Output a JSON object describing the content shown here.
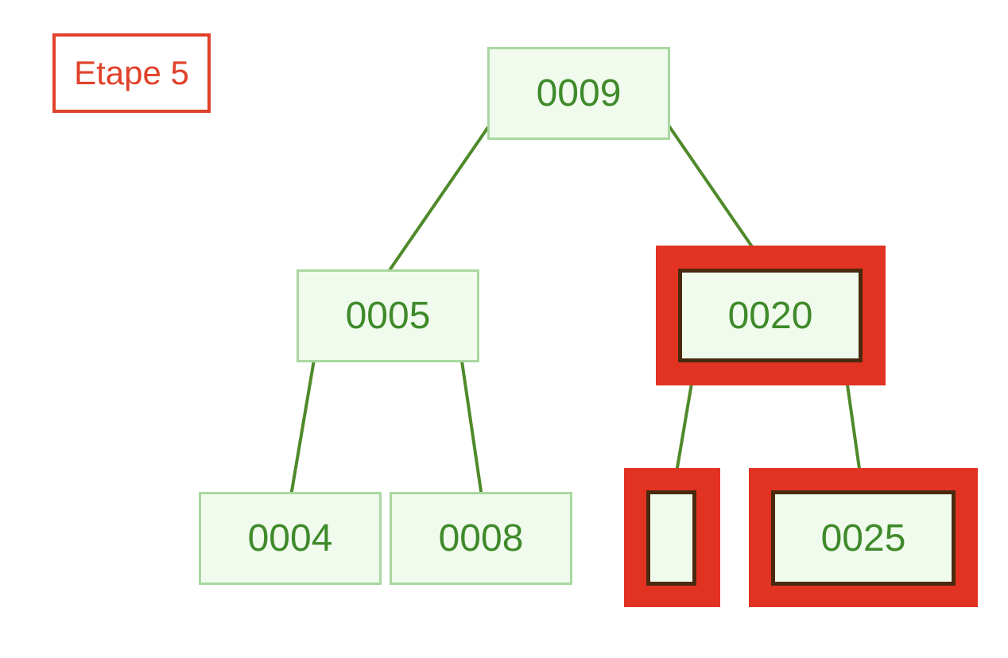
{
  "step_label": "Etape 5",
  "colors": {
    "highlight": "#e23322",
    "node_fill": "#f0fbee",
    "node_border": "#a9d8a0",
    "node_text": "#3f8a2a",
    "edge": "#4f8a2a",
    "label": "#e0412a"
  },
  "tree": {
    "root": {
      "key": "0009"
    },
    "left": {
      "key": "0005"
    },
    "right": {
      "key": "0020",
      "highlighted": true
    },
    "left_left": {
      "key": "0004"
    },
    "left_right": {
      "key": "0008"
    },
    "right_left": {
      "key": "",
      "highlighted": true
    },
    "right_right": {
      "key": "0025",
      "highlighted": true
    }
  }
}
